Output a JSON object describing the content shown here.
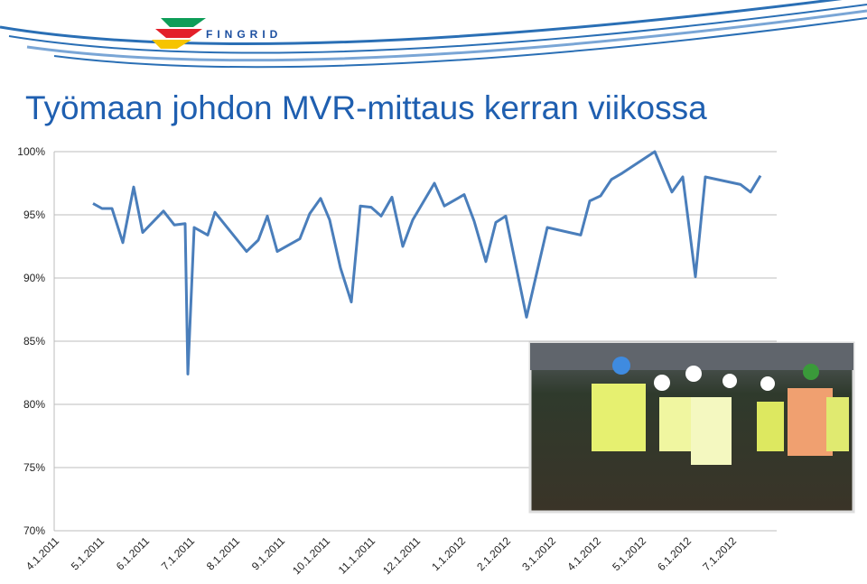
{
  "logo_text": "FINGRID",
  "chart_data": {
    "type": "line",
    "title": "Työmaan johdon MVR-mittaus kerran viikossa",
    "xlim": [
      0.16,
      16.16
    ],
    "xticks": [
      {
        "value": 0,
        "label": "4.1.2011"
      },
      {
        "value": 1,
        "label": "5.1.2011"
      },
      {
        "value": 2,
        "label": "6.1.2011"
      },
      {
        "value": 3,
        "label": "7.1.2011"
      },
      {
        "value": 4,
        "label": "8.1.2011"
      },
      {
        "value": 5,
        "label": "9.1.2011"
      },
      {
        "value": 6,
        "label": "10.1.2011"
      },
      {
        "value": 7,
        "label": "11.1.2011"
      },
      {
        "value": 8,
        "label": "12.1.2011"
      },
      {
        "value": 9,
        "label": "1.1.2012"
      },
      {
        "value": 10,
        "label": "2.1.2012"
      },
      {
        "value": 11,
        "label": "3.1.2012"
      },
      {
        "value": 12,
        "label": "4.1.2012"
      },
      {
        "value": 13,
        "label": "5.1.2012"
      },
      {
        "value": 14,
        "label": "6.1.2012"
      },
      {
        "value": 15,
        "label": "7.1.2012"
      }
    ],
    "ylim": [
      70,
      100
    ],
    "yticks": [
      {
        "value": 70,
        "label": "70%"
      },
      {
        "value": 75,
        "label": "75%"
      },
      {
        "value": 80,
        "label": "80%"
      },
      {
        "value": 85,
        "label": "85%"
      },
      {
        "value": 90,
        "label": "90%"
      },
      {
        "value": 95,
        "label": "95%"
      },
      {
        "value": 100,
        "label": "100%"
      }
    ],
    "grid": true,
    "x": [
      1.02,
      1.22,
      1.44,
      1.68,
      1.92,
      2.12,
      2.58,
      2.82,
      3.06,
      3.12,
      3.26,
      3.56,
      3.72,
      4.42,
      4.68,
      4.88,
      5.1,
      5.6,
      5.82,
      6.06,
      6.26,
      6.5,
      6.74,
      6.94,
      7.18,
      7.4,
      7.64,
      7.88,
      8.1,
      8.58,
      8.8,
      9.24,
      9.46,
      9.72,
      9.94,
      10.16,
      10.62,
      11.08,
      11.82,
      12.02,
      12.26,
      12.5,
      12.74,
      13.46,
      13.84,
      14.08,
      14.36,
      14.58,
      15.36,
      15.58,
      15.8
    ],
    "series": [
      {
        "color": "#4a7ebb",
        "values": [
          95.9,
          95.5,
          95.5,
          92.8,
          97.2,
          93.6,
          95.3,
          94.2,
          94.3,
          82.4,
          94.0,
          93.4,
          95.2,
          92.1,
          93.0,
          94.9,
          92.1,
          93.1,
          95.1,
          96.3,
          94.6,
          90.8,
          88.1,
          95.7,
          95.6,
          94.9,
          96.4,
          92.5,
          94.6,
          97.5,
          95.7,
          96.6,
          94.5,
          91.3,
          94.4,
          94.9,
          86.9,
          94.0,
          93.4,
          96.1,
          96.5,
          97.8,
          98.3,
          100,
          96.8,
          98.0,
          90.1,
          98.0,
          97.4,
          96.8,
          98.1
        ]
      }
    ]
  }
}
